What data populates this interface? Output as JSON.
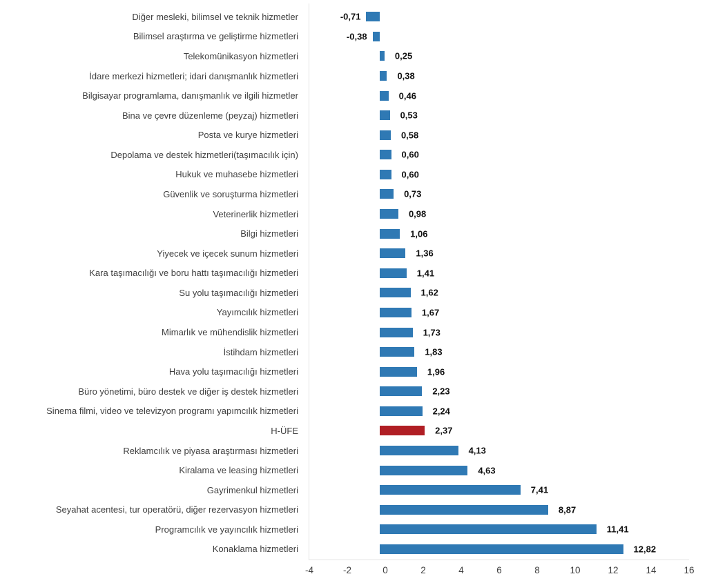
{
  "chart_data": {
    "type": "bar",
    "orientation": "horizontal",
    "title": "",
    "grid": false,
    "xlim": [
      -4,
      16
    ],
    "x_ticks": [
      -4,
      -2,
      0,
      2,
      4,
      6,
      8,
      10,
      12,
      14,
      16
    ],
    "x_tick_labels": [
      "-4",
      "-2",
      "0",
      "2",
      "4",
      "6",
      "8",
      "10",
      "12",
      "14",
      "16"
    ],
    "bar_color": "#2f79b4",
    "highlight_color": "#b01e24",
    "highlight_category": "H-ÜFE",
    "categories": [
      "Diğer mesleki, bilimsel ve teknik hizmetler",
      "Bilimsel araştırma ve geliştirme hizmetleri",
      "Telekomünikasyon hizmetleri",
      "İdare merkezi hizmetleri; idari danışmanlık hizmetleri",
      "Bilgisayar programlama, danışmanlık ve ilgili hizmetler",
      "Bina ve çevre düzenleme (peyzaj) hizmetleri",
      "Posta ve kurye hizmetleri",
      "Depolama ve destek hizmetleri(taşımacılık için)",
      "Hukuk ve muhasebe hizmetleri",
      "Güvenlik ve soruşturma hizmetleri",
      "Veterinerlik hizmetleri",
      "Bilgi hizmetleri",
      "Yiyecek ve içecek sunum hizmetleri",
      "Kara taşımacılığı ve boru hattı taşımacılığı hizmetleri",
      "Su yolu taşımacılığı hizmetleri",
      "Yayımcılık hizmetleri",
      "Mimarlık ve mühendislik hizmetleri",
      "İstihdam hizmetleri",
      "Hava yolu taşımacılığı hizmetleri",
      "Büro yönetimi, büro destek ve diğer iş destek hizmetleri",
      "Sinema filmi, video ve televizyon programı yapımcılık hizmetleri",
      "H-ÜFE",
      "Reklamcılık ve piyasa araştırması hizmetleri",
      "Kiralama ve leasing hizmetleri",
      "Gayrimenkul hizmetleri",
      "Seyahat acentesi, tur operatörü, diğer rezervasyon hizmetleri",
      "Programcılık ve yayıncılık hizmetleri",
      "Konaklama hizmetleri"
    ],
    "values": [
      -0.71,
      -0.38,
      0.25,
      0.38,
      0.46,
      0.53,
      0.58,
      0.6,
      0.6,
      0.73,
      0.98,
      1.06,
      1.36,
      1.41,
      1.62,
      1.67,
      1.73,
      1.83,
      1.96,
      2.23,
      2.24,
      2.37,
      4.13,
      4.63,
      7.41,
      8.87,
      11.41,
      12.82
    ],
    "value_labels": [
      "-0,71",
      "-0,38",
      "0,25",
      "0,38",
      "0,46",
      "0,53",
      "0,58",
      "0,60",
      "0,60",
      "0,73",
      "0,98",
      "1,06",
      "1,36",
      "1,41",
      "1,62",
      "1,67",
      "1,73",
      "1,83",
      "1,96",
      "2,23",
      "2,24",
      "2,37",
      "4,13",
      "4,63",
      "7,41",
      "8,87",
      "11,41",
      "12,82"
    ]
  }
}
